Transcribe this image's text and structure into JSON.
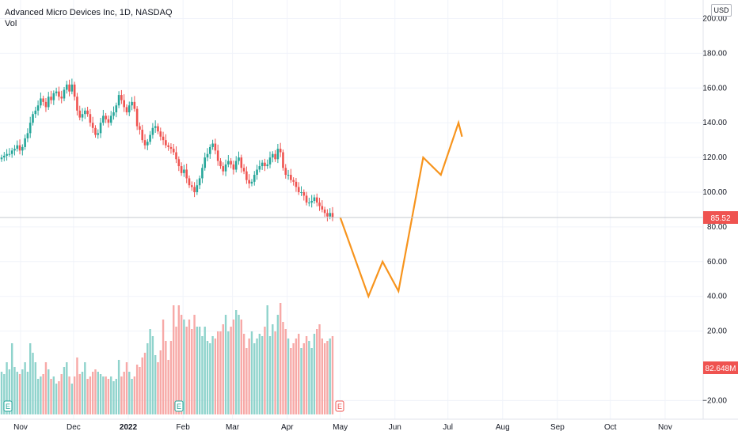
{
  "chart_data": {
    "type": "candlestick",
    "title": "Advanced Micro Devices Inc, 1D, NASDAQ",
    "volume_label": "Vol",
    "currency": "USD",
    "last_price": "85.52",
    "last_volume": "82.648M",
    "colors": {
      "up": "#26a69a",
      "down": "#ef5350",
      "up_vol": "#8fd3cc",
      "down_vol": "#f7a9a7",
      "projection": "#f7941d",
      "price_tag": "#ef5350",
      "grid": "#f0f3fa"
    },
    "price_ticks": [
      "200.00",
      "180.00",
      "160.00",
      "140.00",
      "120.00",
      "100.00",
      "80.00",
      "60.00",
      "40.00",
      "20.00",
      "−20.00"
    ],
    "price_tick_values": [
      200,
      180,
      160,
      140,
      120,
      100,
      80,
      60,
      40,
      20,
      -20
    ],
    "time_labels": [
      {
        "label": "Nov",
        "day": 0
      },
      {
        "label": "Dec",
        "day": 30
      },
      {
        "label": "2022",
        "day": 61
      },
      {
        "label": "Feb",
        "day": 92
      },
      {
        "label": "Mar",
        "day": 120
      },
      {
        "label": "Apr",
        "day": 151
      },
      {
        "label": "May",
        "day": 181
      },
      {
        "label": "Jun",
        "day": 212
      },
      {
        "label": "Jul",
        "day": 242
      },
      {
        "label": "Aug",
        "day": 273
      },
      {
        "label": "Sep",
        "day": 304
      },
      {
        "label": "Oct",
        "day": 334
      },
      {
        "label": "Nov",
        "day": 365
      }
    ],
    "closes": [
      120,
      121,
      122,
      122,
      124,
      125,
      127,
      124,
      126,
      131,
      134,
      140,
      145,
      147,
      150,
      154,
      152,
      149,
      155,
      153,
      157,
      158,
      155,
      154,
      159,
      162,
      158,
      162,
      155,
      147,
      143,
      145,
      147,
      145,
      140,
      137,
      133,
      134,
      140,
      144,
      142,
      140,
      144,
      146,
      150,
      156,
      153,
      149,
      146,
      150,
      152,
      148,
      138,
      136,
      130,
      127,
      129,
      133,
      137,
      138,
      135,
      132,
      130,
      127,
      126,
      125,
      123,
      119,
      115,
      111,
      113,
      108,
      104,
      103,
      100,
      104,
      108,
      114,
      120,
      122,
      126,
      128,
      124,
      118,
      115,
      112,
      116,
      118,
      116,
      113,
      118,
      120,
      114,
      112,
      107,
      105,
      106,
      110,
      113,
      115,
      117,
      115,
      116,
      120,
      122,
      119,
      125,
      123,
      114,
      110,
      110,
      107,
      106,
      103,
      100,
      100,
      98,
      94,
      94,
      95,
      97,
      94,
      92,
      90,
      88,
      86,
      88,
      85.52
    ],
    "volumes": [
      18,
      17,
      22,
      19,
      30,
      20,
      18,
      17,
      19,
      22,
      18,
      30,
      26,
      22,
      15,
      16,
      17,
      22,
      19,
      15,
      16,
      13,
      14,
      17,
      20,
      22,
      16,
      13,
      16,
      24,
      17,
      18,
      22,
      15,
      16,
      18,
      19,
      18,
      17,
      16,
      16,
      15,
      16,
      14,
      15,
      23,
      16,
      18,
      22,
      18,
      15,
      16,
      21,
      20,
      24,
      26,
      30,
      36,
      33,
      25,
      22,
      27,
      40,
      31,
      23,
      31,
      46,
      37,
      46,
      42,
      40,
      37,
      40,
      36,
      42,
      37,
      37,
      33,
      37,
      31,
      30,
      33,
      32,
      35,
      35,
      38,
      42,
      35,
      37,
      40,
      44,
      42,
      40,
      34,
      28,
      32,
      35,
      30,
      32,
      34,
      33,
      37,
      46,
      33,
      38,
      35,
      42,
      47,
      39,
      36,
      32,
      28,
      30,
      32,
      34,
      28,
      30,
      33,
      31,
      28,
      34,
      36,
      38,
      32,
      30,
      31,
      32,
      33
    ],
    "projection_path": [
      {
        "day": 181,
        "price": 85.52
      },
      {
        "day": 197,
        "price": 40
      },
      {
        "day": 205,
        "price": 60
      },
      {
        "day": 214,
        "price": 43
      },
      {
        "day": 228,
        "price": 120
      },
      {
        "day": 238,
        "price": 110
      },
      {
        "day": 248,
        "price": 140
      },
      {
        "day": 250,
        "price": 132
      }
    ]
  }
}
